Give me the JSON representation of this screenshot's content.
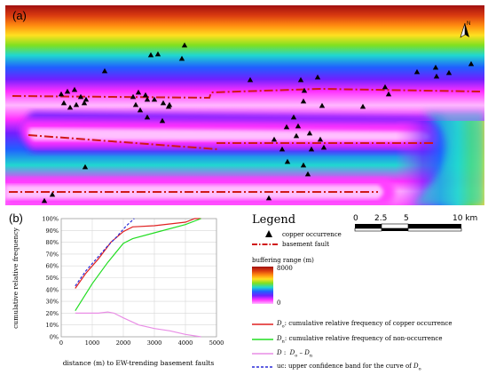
{
  "map": {
    "panel_label": "(a)",
    "north_label": "N"
  },
  "chart_panel": {
    "panel_label": "(b)"
  },
  "chart_data": {
    "type": "line",
    "xlabel": "distance (m) to EW-trending basement faults",
    "ylabel": "cumulative relative frequency",
    "xlim": [
      0,
      5000
    ],
    "ylim": [
      0,
      100
    ],
    "xticks": [
      "0",
      "1000",
      "2000",
      "3000",
      "4000",
      "5000"
    ],
    "yticks": [
      "0%",
      "10%",
      "20%",
      "30%",
      "40%",
      "50%",
      "60%",
      "70%",
      "80%",
      "90%",
      "100%"
    ],
    "grid": true,
    "series": [
      {
        "id": "Do",
        "color": "#e02020",
        "dash": "",
        "x": [
          450,
          800,
          1200,
          1600,
          2000,
          2300,
          3000,
          4000,
          4300,
          4500
        ],
        "y": [
          41,
          54,
          66,
          80,
          89,
          93,
          94,
          97,
          100,
          100
        ]
      },
      {
        "id": "Dn",
        "color": "#22dd22",
        "dash": "",
        "x": [
          450,
          1000,
          1500,
          2000,
          2300,
          3000,
          4000,
          4500
        ],
        "y": [
          22,
          45,
          63,
          79,
          83,
          88,
          95,
          100
        ]
      },
      {
        "id": "D",
        "color": "#e98ee6",
        "dash": "",
        "x": [
          450,
          800,
          1200,
          1500,
          1700,
          2000,
          2500,
          3000,
          3500,
          4000,
          4500
        ],
        "y": [
          20,
          20,
          20,
          21,
          20,
          16,
          10,
          7,
          5,
          2,
          0
        ]
      },
      {
        "id": "uc",
        "color": "#2a2ad8",
        "dash": "3,2",
        "x": [
          450,
          800,
          1200,
          1500,
          1800,
          2100,
          2350
        ],
        "y": [
          43,
          56,
          68,
          77,
          85,
          94,
          100
        ]
      }
    ]
  },
  "legend": {
    "title": "Legend",
    "copper_label": "copper occurrence",
    "fault_label": "basement fault",
    "buffer_title": "buffering range (m)",
    "buffer_max": "8000",
    "buffer_min": "0",
    "do_label": ": cumulative relative frequency of copper occurrence",
    "dn_label": ": cumulative relative frequency of non-occurrence",
    "d_label": ":",
    "uc_label": "uc: upper confidence band for the curve of",
    "colors": {
      "fault": "#e02020",
      "do": "#e02020",
      "dn": "#22dd22",
      "d": "#e98ee6",
      "uc": "#2a2ad8"
    }
  },
  "scale_bar": {
    "labels": [
      "0",
      "2.5",
      "5",
      "10 km"
    ]
  }
}
